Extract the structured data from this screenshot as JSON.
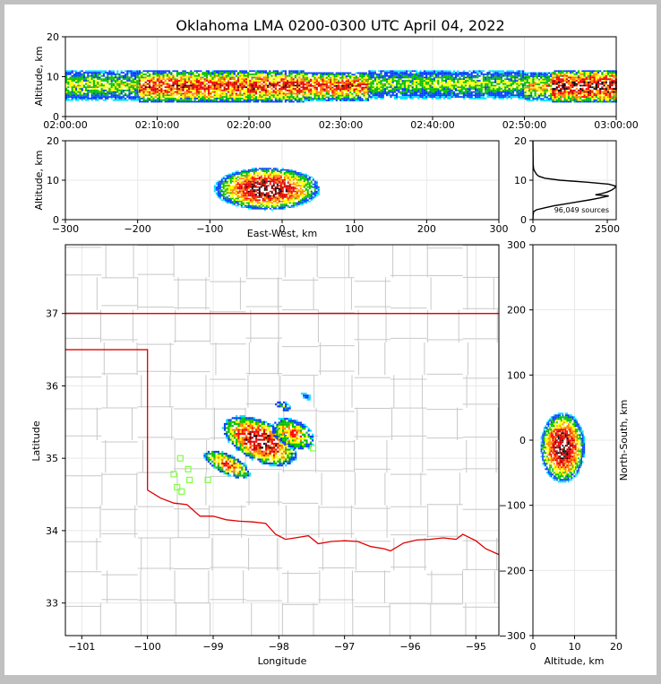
{
  "title": "Oklahoma LMA 0200-0300 UTC April 04, 2022",
  "colors": {
    "frame": "#c0c0c0",
    "background": "#ffffff",
    "state_border": "#e00000",
    "county_line": "#c8c8c8",
    "station": "#80ff40",
    "grid": "#e8e8e8",
    "density_scale": [
      "#00e0ff",
      "#0040ff",
      "#00c000",
      "#ffff00",
      "#ff8000",
      "#ff0000",
      "#c00000",
      "#000000",
      "#ffffff"
    ]
  },
  "chart_data": [
    {
      "name": "altitude_vs_time",
      "type": "heatmap",
      "xlabel": "",
      "ylabel": "Altitude, km",
      "xticks": [
        "02:00:00",
        "02:10:00",
        "02:20:00",
        "02:30:00",
        "02:40:00",
        "02:50:00",
        "03:00:00"
      ],
      "xlim_minutes": [
        0,
        60
      ],
      "ylim": [
        0,
        20
      ],
      "yticks": [
        0,
        10,
        20
      ],
      "bands": [
        {
          "t0": 0,
          "t1": 8,
          "alt_lo": 4,
          "alt_hi": 12,
          "peak": 0.45
        },
        {
          "t0": 8,
          "t1": 26,
          "alt_lo": 3.5,
          "alt_hi": 12,
          "peak": 0.78
        },
        {
          "t0": 26,
          "t1": 33,
          "alt_lo": 4,
          "alt_hi": 11.5,
          "peak": 0.75
        },
        {
          "t0": 33,
          "t1": 50,
          "alt_lo": 4.5,
          "alt_hi": 12,
          "peak": 0.42
        },
        {
          "t0": 50,
          "t1": 53,
          "alt_lo": 4,
          "alt_hi": 11.5,
          "peak": 0.55
        },
        {
          "t0": 53,
          "t1": 60,
          "alt_lo": 3.5,
          "alt_hi": 12,
          "peak": 0.95
        }
      ]
    },
    {
      "name": "altitude_vs_east_west",
      "type": "heatmap",
      "xlabel": "East-West, km",
      "ylabel": "Altitude, km",
      "xlim": [
        -300,
        300
      ],
      "xticks": [
        -300,
        -200,
        -100,
        0,
        100,
        200,
        300
      ],
      "ylim": [
        0,
        20
      ],
      "yticks": [
        0,
        10,
        20
      ],
      "cloud": {
        "center_x": -22,
        "center_alt": 8,
        "half_width": 75,
        "half_height": 5.5
      }
    },
    {
      "name": "altitude_histogram",
      "type": "line",
      "xlabel": "",
      "ylabel": "",
      "annotation": "96,049 sources",
      "xlim": [
        0,
        2800
      ],
      "xticks": [
        0,
        2500
      ],
      "ylim": [
        0,
        20
      ],
      "yticks": [
        0,
        10,
        20
      ],
      "altitude_km": [
        0,
        1,
        2,
        2.5,
        3,
        3.5,
        4,
        4.5,
        5,
        5.5,
        6,
        6.3,
        6.6,
        7,
        7.5,
        8,
        8.5,
        9,
        9.5,
        10,
        10.5,
        11,
        11.5,
        12,
        12.5,
        13,
        14,
        16,
        18,
        20
      ],
      "count": [
        0,
        5,
        20,
        120,
        400,
        700,
        1100,
        1500,
        1900,
        2250,
        2550,
        2100,
        2300,
        2500,
        2650,
        2750,
        2780,
        2550,
        1800,
        900,
        400,
        200,
        120,
        80,
        40,
        20,
        10,
        5,
        2,
        0
      ]
    },
    {
      "name": "plan_view",
      "type": "scatter",
      "xlabel": "Longitude",
      "ylabel": "Latitude",
      "xlim": [
        -101.25,
        -94.65
      ],
      "ylim": [
        32.55,
        37.95
      ],
      "xticks": [
        -101,
        -100,
        -99,
        -98,
        -97,
        -96,
        -95
      ],
      "yticks": [
        33,
        34,
        35,
        36,
        37
      ],
      "stations": [
        [
          -99.5,
          35.0
        ],
        [
          -99.38,
          34.85
        ],
        [
          -99.6,
          34.78
        ],
        [
          -99.36,
          34.7
        ],
        [
          -99.55,
          34.6
        ],
        [
          -99.48,
          34.54
        ],
        [
          -99.08,
          34.7
        ],
        [
          -97.48,
          35.14
        ]
      ],
      "clusters": [
        {
          "lon": -98.3,
          "lat": 35.25,
          "rx": 0.62,
          "ry": 0.28,
          "peak": 1.0
        },
        {
          "lon": -97.8,
          "lat": 35.35,
          "rx": 0.35,
          "ry": 0.2,
          "peak": 0.7
        },
        {
          "lon": -98.8,
          "lat": 34.93,
          "rx": 0.4,
          "ry": 0.14,
          "peak": 0.75
        },
        {
          "lon": -97.95,
          "lat": 35.73,
          "rx": 0.15,
          "ry": 0.07,
          "peak": 0.35
        },
        {
          "lon": -97.6,
          "lat": 35.87,
          "rx": 0.1,
          "ry": 0.05,
          "peak": 0.25
        }
      ]
    },
    {
      "name": "north_south_vs_altitude",
      "type": "heatmap",
      "xlabel": "Altitude, km",
      "ylabel": "North-South, km",
      "xlim": [
        0,
        20
      ],
      "xticks": [
        0,
        10,
        20
      ],
      "ylim": [
        -300,
        300
      ],
      "yticks": [
        -300,
        -200,
        -100,
        0,
        100,
        200,
        300
      ],
      "cloud": {
        "center_alt": 7,
        "center_y": -10,
        "half_width": 5.5,
        "half_height": 55
      }
    }
  ]
}
